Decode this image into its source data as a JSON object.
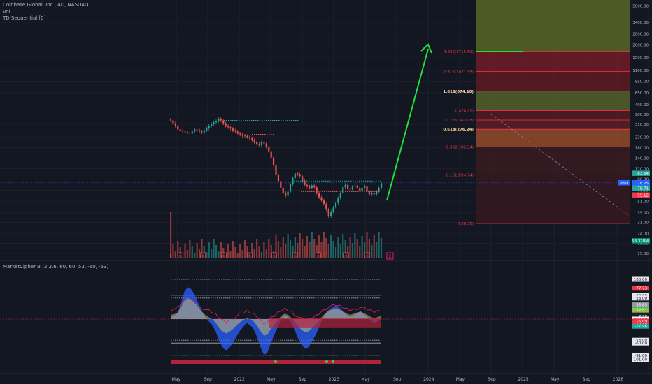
{
  "header": {
    "symbol_line": "Coinbase Global, Inc., 4D, NASDAQ",
    "volume_label": "Vol",
    "td_label": "TD Sequential [0]",
    "indicator_label": "MarketCipher B (2.2.6, 60, 60, 53, -60, -53)"
  },
  "colors": {
    "background": "#131722",
    "up": "#26a69a",
    "down": "#ef5350",
    "fib_line": "#f23645",
    "green_arrow": "#22e03a",
    "wave_blue": "#2962ff",
    "wave_yellow": "#d9c46e",
    "mf_red": "#b2223a"
  },
  "chart_data": [
    {
      "type": "candlestick",
      "x_axis": {
        "tick_labels": [
          "May",
          "Sep",
          "2022",
          "May",
          "Sep",
          "2023",
          "May",
          "Sep",
          "2024",
          "May",
          "Sep",
          "2025",
          "May",
          "Sep",
          "2026"
        ]
      },
      "y_axis": {
        "scale": "log",
        "tick_labels": [
          "5000.00",
          "3400.00",
          "2600.00",
          "2000.00",
          "1500.00",
          "1100.00",
          "850.00",
          "650.00",
          "490.00",
          "390.00",
          "310.00",
          "230.00",
          "180.00",
          "140.00",
          "110.00",
          "86.00",
          "66.00",
          "51.00",
          "39.00",
          "31.00",
          "24.00",
          "19.00",
          "15.00"
        ]
      },
      "price_series_close": [
        340,
        318,
        296,
        275,
        268,
        262,
        258,
        255,
        250,
        262,
        275,
        270,
        262,
        258,
        270,
        282,
        300,
        312,
        326,
        335,
        352,
        340,
        318,
        300,
        290,
        281,
        269,
        262,
        250,
        245,
        238,
        236,
        230,
        224,
        215,
        204,
        196,
        190,
        205,
        198,
        182,
        165,
        142,
        120,
        95,
        82,
        70,
        62,
        58,
        64,
        76,
        88,
        98,
        96,
        92,
        82,
        75,
        72,
        70,
        74,
        71,
        62,
        56,
        52,
        48,
        42,
        36,
        40,
        44,
        49,
        55,
        62,
        71,
        75,
        69,
        67,
        72,
        74,
        70,
        65,
        70,
        73,
        64,
        60,
        62,
        60,
        64,
        70,
        78
      ],
      "price_labels": [
        {
          "text": "Post",
          "value": 78.75
        },
        {
          "text": "78.75",
          "value": 78.75
        },
        {
          "text": "78.71",
          "value": 78.71
        },
        {
          "text": "83.54",
          "value": 83.54
        },
        {
          "text": "59.12",
          "value": 59.12
        },
        {
          "text": "58.328M",
          "value": 58.328
        }
      ],
      "fibonacci": [
        {
          "label": "4.236(1715.69)",
          "price": 1715.69
        },
        {
          "label": "2.618(1071.95)",
          "price": 1071.95
        },
        {
          "label": "1.618(674.10)",
          "price": 674.1
        },
        {
          "label": "1(428.22)",
          "price": 428.22
        },
        {
          "label": "0.786(343.08)",
          "price": 343.08
        },
        {
          "label": "0.618(276.24)",
          "price": 276.24
        },
        {
          "label": "0.382(182.34)",
          "price": 182.34
        },
        {
          "label": "0.1618(94.74)",
          "price": 94.74
        },
        {
          "label": "0(30.36)",
          "price": 30.36
        }
      ],
      "earnings_marker": "E"
    },
    {
      "type": "oscillator",
      "name": "MarketCipher B",
      "y_tick_labels": [
        "100.00",
        "60.00",
        "53.00",
        "-53.00",
        "-60.00",
        "-91.00",
        "-101.00"
      ],
      "value_labels": [
        "77.73",
        "35.85",
        "24.77",
        "22.51",
        "7.38",
        "0.0000",
        "-5.09",
        "-13.40",
        "-17.96"
      ],
      "wave_values": [
        5,
        8,
        15,
        40,
        70,
        80,
        75,
        60,
        40,
        20,
        5,
        -5,
        -15,
        -30,
        -55,
        -70,
        -80,
        -72,
        -60,
        -45,
        -30,
        -20,
        -10,
        -15,
        -25,
        -45,
        -70,
        -90,
        -85,
        -60,
        -40,
        -20,
        0,
        10,
        5,
        -10,
        -30,
        -50,
        -65,
        -75,
        -70,
        -55,
        -40,
        -20,
        0,
        15,
        25,
        30,
        35,
        28,
        20,
        10,
        5,
        10,
        15,
        20,
        12,
        5,
        -5,
        -10,
        -5,
        0
      ]
    }
  ]
}
